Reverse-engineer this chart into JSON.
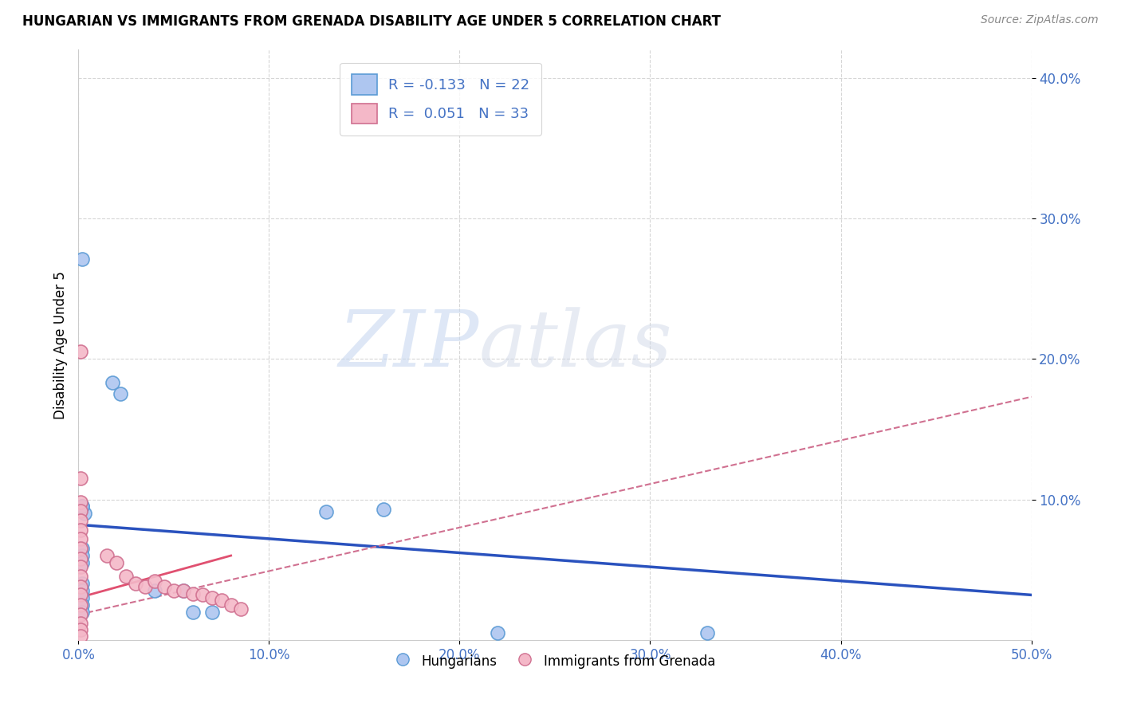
{
  "title": "HUNGARIAN VS IMMIGRANTS FROM GRENADA DISABILITY AGE UNDER 5 CORRELATION CHART",
  "source": "Source: ZipAtlas.com",
  "ylabel": "Disability Age Under 5",
  "xlim": [
    0.0,
    0.5
  ],
  "ylim": [
    0.0,
    0.42
  ],
  "xtick_vals": [
    0.0,
    0.1,
    0.2,
    0.3,
    0.4,
    0.5
  ],
  "ytick_vals": [
    0.1,
    0.2,
    0.3,
    0.4
  ],
  "legend_items": [
    {
      "label": "R = -0.133   N = 22",
      "color": "#aec6f0"
    },
    {
      "label": "R =  0.051   N = 33",
      "color": "#f4b8c8"
    }
  ],
  "blue_scatter": [
    [
      0.002,
      0.271
    ],
    [
      0.018,
      0.183
    ],
    [
      0.022,
      0.175
    ],
    [
      0.002,
      0.095
    ],
    [
      0.003,
      0.09
    ],
    [
      0.002,
      0.095
    ],
    [
      0.13,
      0.091
    ],
    [
      0.16,
      0.093
    ],
    [
      0.002,
      0.065
    ],
    [
      0.002,
      0.06
    ],
    [
      0.002,
      0.055
    ],
    [
      0.002,
      0.04
    ],
    [
      0.002,
      0.035
    ],
    [
      0.002,
      0.03
    ],
    [
      0.002,
      0.025
    ],
    [
      0.002,
      0.02
    ],
    [
      0.04,
      0.035
    ],
    [
      0.055,
      0.035
    ],
    [
      0.06,
      0.02
    ],
    [
      0.07,
      0.02
    ],
    [
      0.22,
      0.005
    ],
    [
      0.33,
      0.005
    ]
  ],
  "pink_scatter": [
    [
      0.001,
      0.205
    ],
    [
      0.001,
      0.115
    ],
    [
      0.001,
      0.098
    ],
    [
      0.001,
      0.092
    ],
    [
      0.001,
      0.085
    ],
    [
      0.001,
      0.078
    ],
    [
      0.001,
      0.072
    ],
    [
      0.001,
      0.065
    ],
    [
      0.001,
      0.058
    ],
    [
      0.001,
      0.052
    ],
    [
      0.001,
      0.045
    ],
    [
      0.001,
      0.038
    ],
    [
      0.001,
      0.032
    ],
    [
      0.001,
      0.025
    ],
    [
      0.001,
      0.018
    ],
    [
      0.001,
      0.012
    ],
    [
      0.001,
      0.007
    ],
    [
      0.001,
      0.003
    ],
    [
      0.015,
      0.06
    ],
    [
      0.02,
      0.055
    ],
    [
      0.025,
      0.045
    ],
    [
      0.03,
      0.04
    ],
    [
      0.035,
      0.038
    ],
    [
      0.04,
      0.042
    ],
    [
      0.045,
      0.038
    ],
    [
      0.05,
      0.035
    ],
    [
      0.055,
      0.035
    ],
    [
      0.06,
      0.033
    ],
    [
      0.065,
      0.032
    ],
    [
      0.07,
      0.03
    ],
    [
      0.075,
      0.028
    ],
    [
      0.08,
      0.025
    ],
    [
      0.085,
      0.022
    ]
  ],
  "blue_line_x": [
    0.0,
    0.5
  ],
  "blue_line_y": [
    0.082,
    0.032
  ],
  "pink_dashed_line_x": [
    0.0,
    0.5
  ],
  "pink_dashed_line_y": [
    0.018,
    0.173
  ],
  "pink_solid_line_x": [
    0.0,
    0.08
  ],
  "pink_solid_line_y": [
    0.03,
    0.06
  ],
  "blue_marker_color": "#aec6f0",
  "blue_edge_color": "#5b9bd5",
  "pink_marker_color": "#f4b8c8",
  "pink_edge_color": "#d07090",
  "blue_line_color": "#2a52be",
  "pink_dashed_color": "#d07090",
  "pink_solid_color": "#e05070",
  "watermark_zip": "ZIP",
  "watermark_atlas": "atlas",
  "grid_color": "#cccccc",
  "background_color": "#ffffff"
}
